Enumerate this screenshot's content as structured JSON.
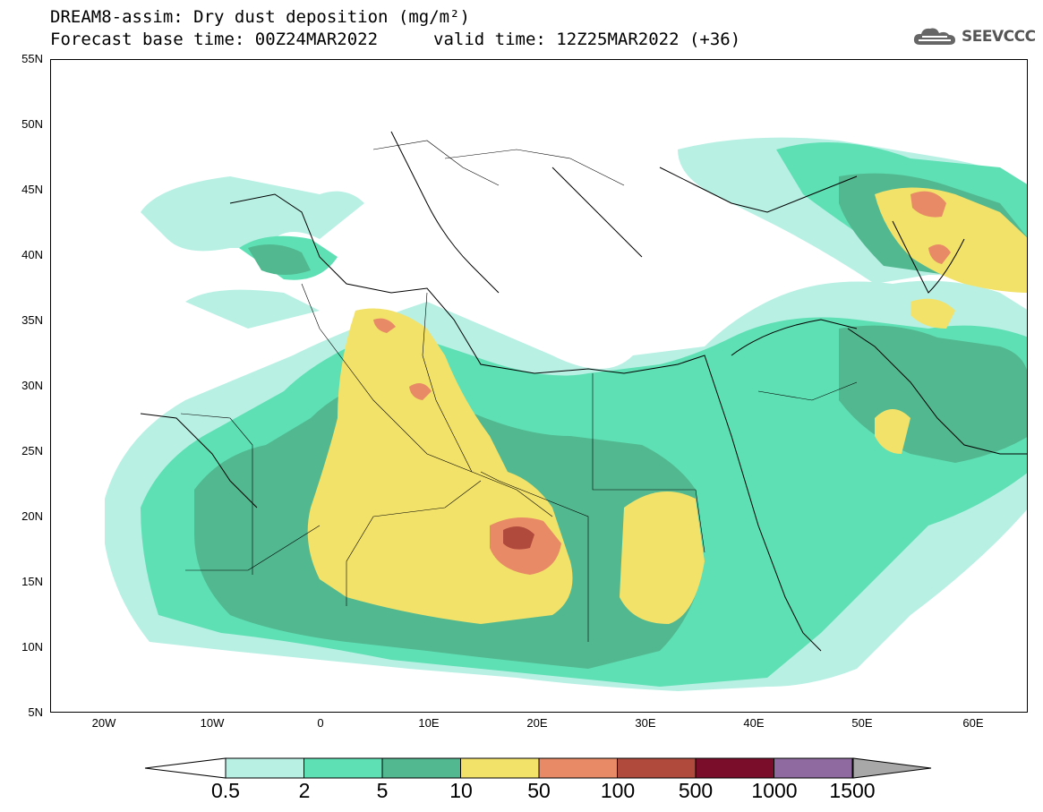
{
  "header": {
    "title": "DREAM8-assim: Dry dust deposition (mg/m²)",
    "base_time": "Forecast base time: 00Z24MAR2022",
    "valid_time": "valid time: 12Z25MAR2022 (+36)"
  },
  "logo": {
    "text": "SEEVCCC",
    "icon": "cloud-icon"
  },
  "axes": {
    "lat_labels": [
      "55N",
      "50N",
      "45N",
      "40N",
      "35N",
      "30N",
      "25N",
      "20N",
      "15N",
      "10N",
      "5N"
    ],
    "lon_labels": [
      "20W",
      "10W",
      "0",
      "10E",
      "20E",
      "30E",
      "40E",
      "50E",
      "60E"
    ]
  },
  "colorbar": {
    "labels": [
      "0.5",
      "2",
      "5",
      "10",
      "50",
      "100",
      "500",
      "1000",
      "1500"
    ],
    "colors": [
      "#b8f0e4",
      "#5ee0b4",
      "#52b890",
      "#f2e26a",
      "#e88a66",
      "#b04a3c",
      "#7a0e2a",
      "#8e6aa0",
      "#a8a8a8"
    ]
  },
  "map": {
    "lon_range": [
      -25,
      65
    ],
    "lat_range": [
      5,
      55
    ]
  }
}
